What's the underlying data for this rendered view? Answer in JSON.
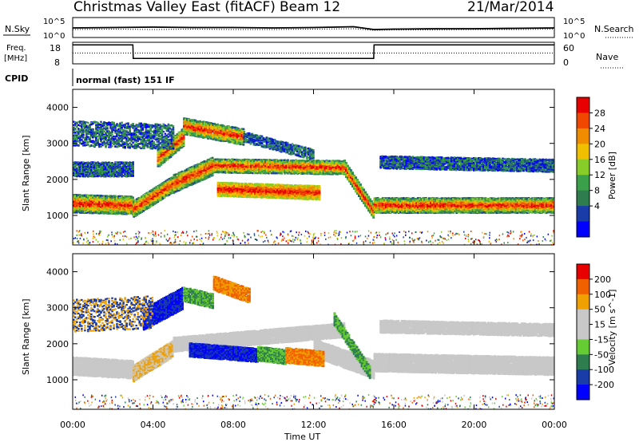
{
  "header": {
    "title": "Christmas Valley East (fitACF)",
    "beam": "Beam 12",
    "date": "21/Mar/2014"
  },
  "top_panels": {
    "nsky_label": "N.Sky",
    "nsearch_label": "N.Search",
    "nsky_ticks": [
      "10^5",
      "10^0"
    ],
    "freq_label": "Freq.",
    "freq_unit": "[MHz]",
    "freq_ticks": [
      "18",
      "8"
    ],
    "nave_label": "Nave",
    "nave_ticks": [
      "60",
      "0"
    ],
    "cpid_label": "CPID",
    "cpid_text": "normal (fast) 151 IF"
  },
  "colors": {
    "power": [
      "#0000ff",
      "#1a3ca8",
      "#2e7d4f",
      "#3aa04a",
      "#88cc2a",
      "#f0c000",
      "#f08c00",
      "#f04800",
      "#e80000"
    ],
    "velocity": [
      "#0000ff",
      "#1a3ca8",
      "#2e7d4f",
      "#66cc33",
      "#c8c8c8",
      "#c8c8c8",
      "#f0a000",
      "#f06000",
      "#e80000"
    ]
  },
  "chart_data": [
    {
      "type": "line",
      "panel": "nsky-nsearch",
      "xlabel": "",
      "ylabel": "N.Sky",
      "y2label": "N.Search",
      "x": [
        "00:00",
        "02:00",
        "04:00",
        "06:00",
        "08:00",
        "10:00",
        "12:00",
        "14:00",
        "15:00",
        "16:00",
        "18:00",
        "20:00",
        "22:00",
        "24:00"
      ],
      "series": [
        {
          "name": "N.Sky",
          "values": [
            2.4,
            2.5,
            2.6,
            2.5,
            2.5,
            2.4,
            2.5,
            2.7,
            2.0,
            2.1,
            2.2,
            2.2,
            2.3,
            2.4
          ]
        },
        {
          "name": "N.Search",
          "values": [
            2.0,
            2.1,
            2.0,
            2.1,
            2.0,
            2.0,
            2.1,
            2.2,
            1.8,
            1.9,
            1.9,
            2.0,
            2.0,
            2.1
          ]
        }
      ],
      "ylim": [
        0,
        5
      ]
    },
    {
      "type": "line",
      "panel": "freq-nave",
      "ylabel": "Freq. [MHz]",
      "y2label": "Nave",
      "x": [
        "00:00",
        "03:00",
        "03:01",
        "15:00",
        "15:01",
        "24:00"
      ],
      "series": [
        {
          "name": "Freq.",
          "values": [
            16.8,
            16.8,
            10.5,
            10.5,
            16.8,
            16.8
          ]
        },
        {
          "name": "Nave",
          "values": [
            30,
            30,
            30,
            30,
            30,
            30
          ]
        }
      ],
      "ylim": [
        8,
        18
      ],
      "y2lim": [
        0,
        60
      ]
    },
    {
      "type": "heatmap",
      "panel": "power",
      "xlabel": "",
      "ylabel": "Slant Range [km]",
      "colorbar_label": "Power [dB]",
      "colorbar_ticks": [
        "28",
        "24",
        "20",
        "16",
        "12",
        "8",
        "4"
      ],
      "x_ticks": [
        "00:00",
        "04:00",
        "08:00",
        "12:00",
        "16:00",
        "20:00",
        "00:00"
      ],
      "y_ticks": [
        "4000",
        "3000",
        "2000",
        "1000"
      ],
      "xlim": [
        0,
        24
      ],
      "ylim": [
        180,
        4500
      ]
    },
    {
      "type": "heatmap",
      "panel": "velocity",
      "xlabel": "Time UT",
      "ylabel": "Slant Range [km]",
      "colorbar_label": "Velocity [m s^-1]",
      "colorbar_ticks": [
        "200",
        "100",
        "50",
        "15",
        "-15",
        "-50",
        "-100",
        "-200"
      ],
      "x_ticks": [
        "00:00",
        "04:00",
        "08:00",
        "12:00",
        "16:00",
        "20:00",
        "00:00"
      ],
      "y_ticks": [
        "4000",
        "3000",
        "2000",
        "1000"
      ],
      "xlim": [
        0,
        24
      ],
      "ylim": [
        180,
        4500
      ]
    }
  ]
}
